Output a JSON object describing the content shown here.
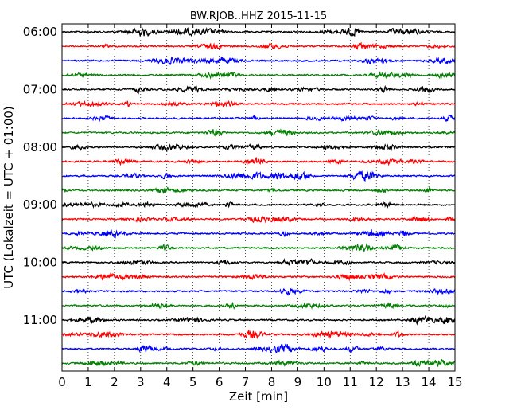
{
  "chart_data": {
    "type": "line",
    "title": "BW.RJOB..HHZ 2015-11-15",
    "xlabel": "Zeit  [min]",
    "ylabel": "UTC (Lokalzeit = UTC + 01:00)",
    "xlim": [
      0,
      15
    ],
    "x_ticks": [
      "0",
      "1",
      "2",
      "3",
      "4",
      "5",
      "6",
      "7",
      "8",
      "9",
      "10",
      "11",
      "12",
      "13",
      "14",
      "15"
    ],
    "y_tick_labels": [
      "06:00",
      "07:00",
      "08:00",
      "09:00",
      "10:00",
      "11:00"
    ],
    "rows_per_hour": 4,
    "row_count": 24,
    "trace_colors": [
      "#000000",
      "#ff0000",
      "#0000ff",
      "#007f00"
    ],
    "grid": "vertical dotted",
    "legend": "none"
  }
}
